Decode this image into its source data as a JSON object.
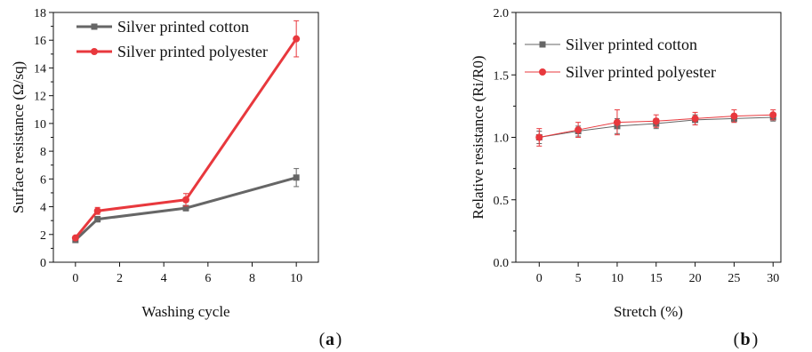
{
  "colors": {
    "cotton": "#666666",
    "polyester": "#e8383d",
    "axis": "#111111"
  },
  "chart_data": [
    {
      "panel_label": "a",
      "type": "line",
      "xlabel": "Washing cycle",
      "ylabel": "Surface resistance (Ω/sq)",
      "xlim": [
        -1,
        11
      ],
      "ylim": [
        0,
        18
      ],
      "xticks": [
        0,
        2,
        4,
        6,
        8,
        10
      ],
      "yticks": [
        0,
        2,
        4,
        6,
        8,
        10,
        12,
        14,
        16,
        18
      ],
      "ytick_format": "int",
      "legend_position": "top-left",
      "series": [
        {
          "name": "Silver printed cotton",
          "color": "#666666",
          "marker": "square",
          "x": [
            0,
            1,
            5,
            10
          ],
          "y": [
            1.6,
            3.1,
            3.9,
            6.1
          ],
          "err": [
            0.15,
            0.2,
            0.2,
            0.65
          ]
        },
        {
          "name": "Silver printed polyester",
          "color": "#e8383d",
          "marker": "circle",
          "x": [
            0,
            1,
            5,
            10
          ],
          "y": [
            1.75,
            3.7,
            4.5,
            16.1
          ],
          "err": [
            0.15,
            0.25,
            0.45,
            1.3
          ]
        }
      ]
    },
    {
      "panel_label": "b",
      "type": "line",
      "xlabel": "Stretch (%)",
      "ylabel": "Relative resistance (Ri/R0)",
      "xlim": [
        -3,
        31
      ],
      "ylim": [
        0,
        2
      ],
      "xticks": [
        0,
        5,
        10,
        15,
        20,
        25,
        30
      ],
      "yticks": [
        0,
        0.5,
        1.0,
        1.5,
        2.0
      ],
      "ytick_format": "1dp",
      "legend_position": "top-left",
      "series": [
        {
          "name": "Silver printed cotton",
          "color": "#666666",
          "marker": "square",
          "x": [
            0,
            5,
            10,
            15,
            20,
            25,
            30
          ],
          "y": [
            1.0,
            1.05,
            1.09,
            1.11,
            1.14,
            1.15,
            1.16
          ],
          "err": [
            0.05,
            0.04,
            0.06,
            0.04,
            0.04,
            0.03,
            0.03
          ]
        },
        {
          "name": "Silver printed polyester",
          "color": "#e8383d",
          "marker": "circle",
          "x": [
            0,
            5,
            10,
            15,
            20,
            25,
            30
          ],
          "y": [
            1.0,
            1.06,
            1.12,
            1.13,
            1.15,
            1.17,
            1.18
          ],
          "err": [
            0.07,
            0.06,
            0.1,
            0.05,
            0.05,
            0.05,
            0.04
          ]
        }
      ]
    }
  ]
}
